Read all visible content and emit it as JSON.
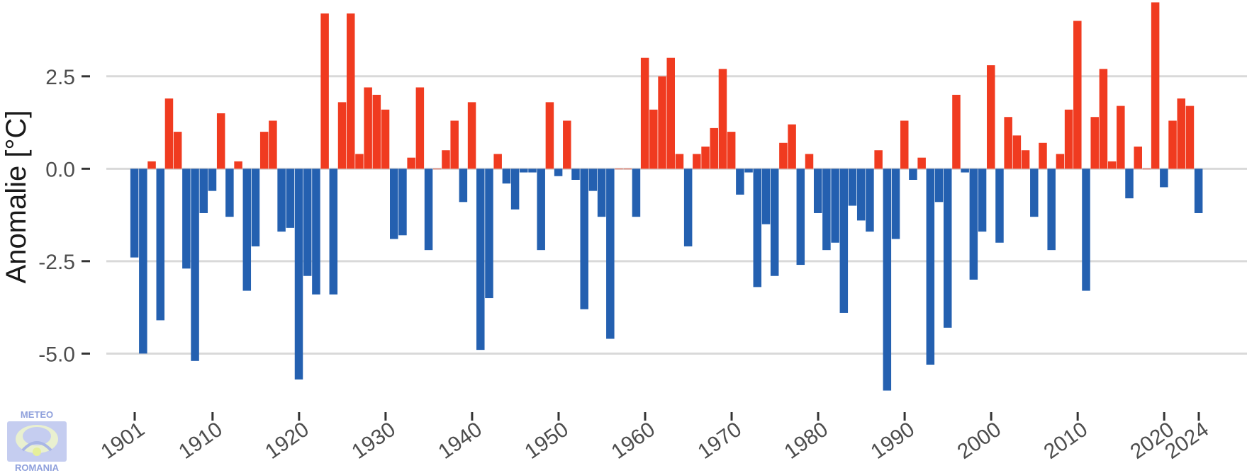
{
  "chart_data": {
    "type": "bar",
    "title": "",
    "xlabel": "",
    "ylabel": "Anomalie [°C]",
    "ylim": [
      -6.2,
      4.45
    ],
    "xlim": [
      1900.2,
      2024.8
    ],
    "y_ticks": [
      {
        "value": 2.5,
        "label": "2.5"
      },
      {
        "value": 0.0,
        "label": "0.0"
      },
      {
        "value": -2.5,
        "label": "-2.5"
      },
      {
        "value": -5.0,
        "label": "-5.0"
      }
    ],
    "x_ticks": [
      {
        "value": 1901,
        "label": "1901"
      },
      {
        "value": 1910,
        "label": "1910"
      },
      {
        "value": 1920,
        "label": "1920"
      },
      {
        "value": 1930,
        "label": "1930"
      },
      {
        "value": 1940,
        "label": "1940"
      },
      {
        "value": 1950,
        "label": "1950"
      },
      {
        "value": 1960,
        "label": "1960"
      },
      {
        "value": 1970,
        "label": "1970"
      },
      {
        "value": 1980,
        "label": "1980"
      },
      {
        "value": 1990,
        "label": "1990"
      },
      {
        "value": 2000,
        "label": "2000"
      },
      {
        "value": 2010,
        "label": "2010"
      },
      {
        "value": 2020,
        "label": "2020"
      },
      {
        "value": 2024,
        "label": "2024"
      }
    ],
    "grid": true,
    "legend": "none",
    "colors": {
      "positive": "#f03b20",
      "negative": "#2460b0"
    },
    "start_year": 1901,
    "values": [
      -2.4,
      -5.0,
      0.2,
      -4.1,
      1.9,
      1.0,
      -2.7,
      -5.2,
      -1.2,
      -0.6,
      1.5,
      -1.3,
      0.2,
      -3.3,
      -2.1,
      1.0,
      1.3,
      -1.7,
      -1.6,
      -5.7,
      -2.9,
      -3.4,
      4.2,
      -3.4,
      1.8,
      4.2,
      0.4,
      2.2,
      2.0,
      1.6,
      -1.9,
      -1.8,
      0.3,
      2.2,
      -2.2,
      0.0,
      0.5,
      1.3,
      -0.9,
      1.8,
      -4.9,
      -3.5,
      0.4,
      -0.4,
      -1.1,
      -0.1,
      -0.1,
      -2.2,
      1.8,
      -0.2,
      1.3,
      -0.3,
      -3.8,
      -0.6,
      -1.3,
      -4.6,
      0.0,
      0.0,
      -1.3,
      3.0,
      1.6,
      2.5,
      3.0,
      0.4,
      -2.1,
      0.4,
      0.6,
      1.1,
      2.7,
      1.0,
      -0.7,
      -0.1,
      -3.2,
      -1.5,
      -2.9,
      0.7,
      1.2,
      -2.6,
      0.4,
      -1.2,
      -2.2,
      -2.0,
      -3.9,
      -1.0,
      -1.4,
      -1.7,
      0.5,
      -6.0,
      -1.9,
      1.3,
      -0.3,
      0.3,
      -5.3,
      -0.9,
      -4.3,
      2.0,
      -0.1,
      -3.0,
      -1.7,
      2.8,
      -2.0,
      1.4,
      0.9,
      0.5,
      -1.3,
      0.7,
      -2.2,
      0.4,
      1.6,
      4.0,
      -3.3,
      1.4,
      2.7,
      0.2,
      1.7,
      -0.8,
      0.6,
      0.0,
      4.5,
      -0.5,
      1.3,
      1.9,
      1.7,
      -1.2
    ]
  },
  "logo": {
    "top_text": "METEO",
    "bottom_text": "ROMANIA",
    "symbol": "meteo-romania-logo-icon",
    "color": "#8fa0dc"
  }
}
